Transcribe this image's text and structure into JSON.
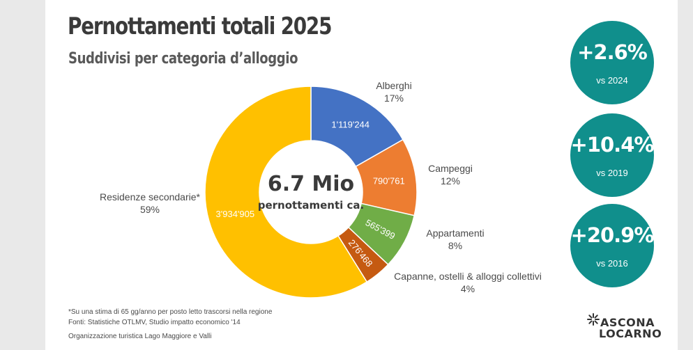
{
  "title": "Pernottamenti totali 2025",
  "subtitle": "Suddivisi per categoria d’alloggio",
  "center": {
    "big": "6.7 Mio",
    "small": "pernottamenti ca."
  },
  "chart_data": {
    "type": "pie",
    "style": "donut",
    "slices": [
      {
        "label": "Alberghi",
        "percent": "17%",
        "value": 1119244,
        "value_text": "1'119'244",
        "color": "#4472c4"
      },
      {
        "label": "Campeggi",
        "percent": "12%",
        "value": 790761,
        "value_text": "790'761",
        "color": "#ed7d31"
      },
      {
        "label": "Appartamenti",
        "percent": "8%",
        "value": 565399,
        "value_text": "565'399",
        "color": "#70ad47"
      },
      {
        "label": "Capanne, ostelli & alloggi collettivi",
        "percent": "4%",
        "value": 276468,
        "value_text": "276'468",
        "color": "#c55a11"
      },
      {
        "label": "Residenze secondarie*",
        "percent": "59%",
        "value": 3934905,
        "value_text": "3'934'905",
        "color": "#ffc000"
      }
    ]
  },
  "stats": [
    {
      "value": "+2.6%",
      "label": "vs 2024"
    },
    {
      "value": "+10.4%",
      "label": "vs 2019"
    },
    {
      "value": "+20.9%",
      "label": "vs 2016"
    }
  ],
  "stat_color": "#108f8c",
  "footnote": {
    "line1": "*Su una stima di 65 gg/anno per posto letto trascorsi nella regione",
    "line2": "Fonti: Statistiche OTLMV, Studio impatto economico '14",
    "org": "Organizzazione turistica Lago Maggiore e Valli"
  },
  "logo": {
    "line1": "ASCONA",
    "line2": "LOCARNO",
    "icon": "sun-burst-icon"
  }
}
